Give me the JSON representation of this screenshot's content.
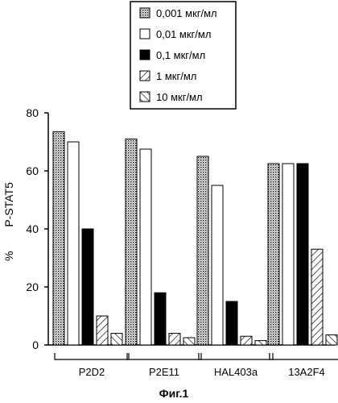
{
  "chart_data": {
    "type": "bar",
    "categories": [
      "P2D2",
      "P2E11",
      "HAL403a",
      "13A2F4"
    ],
    "series": [
      {
        "name": "0,001 мкг/мл",
        "fill": "dots",
        "values": [
          73.5,
          71,
          65,
          62.5
        ]
      },
      {
        "name": "0,01 мкг/мл",
        "fill": "white",
        "values": [
          70,
          67.5,
          55,
          62.5
        ]
      },
      {
        "name": "0,1 мкг/мл",
        "fill": "black",
        "values": [
          40,
          18,
          15,
          62.5
        ]
      },
      {
        "name": "1 мкг/мл",
        "fill": "hatch-forward",
        "values": [
          10,
          4,
          3,
          33
        ]
      },
      {
        "name": "10 мкг/мл",
        "fill": "hatch-back",
        "values": [
          4,
          2.5,
          1.5,
          3.5
        ]
      }
    ],
    "ylabel_prefix": "%",
    "ylabel": "P-STAT5",
    "ylim": [
      0,
      80
    ],
    "yticks": [
      0,
      20,
      40,
      60,
      80
    ],
    "grid": false,
    "legend_position": "top-center"
  },
  "caption": "Фиг.1"
}
